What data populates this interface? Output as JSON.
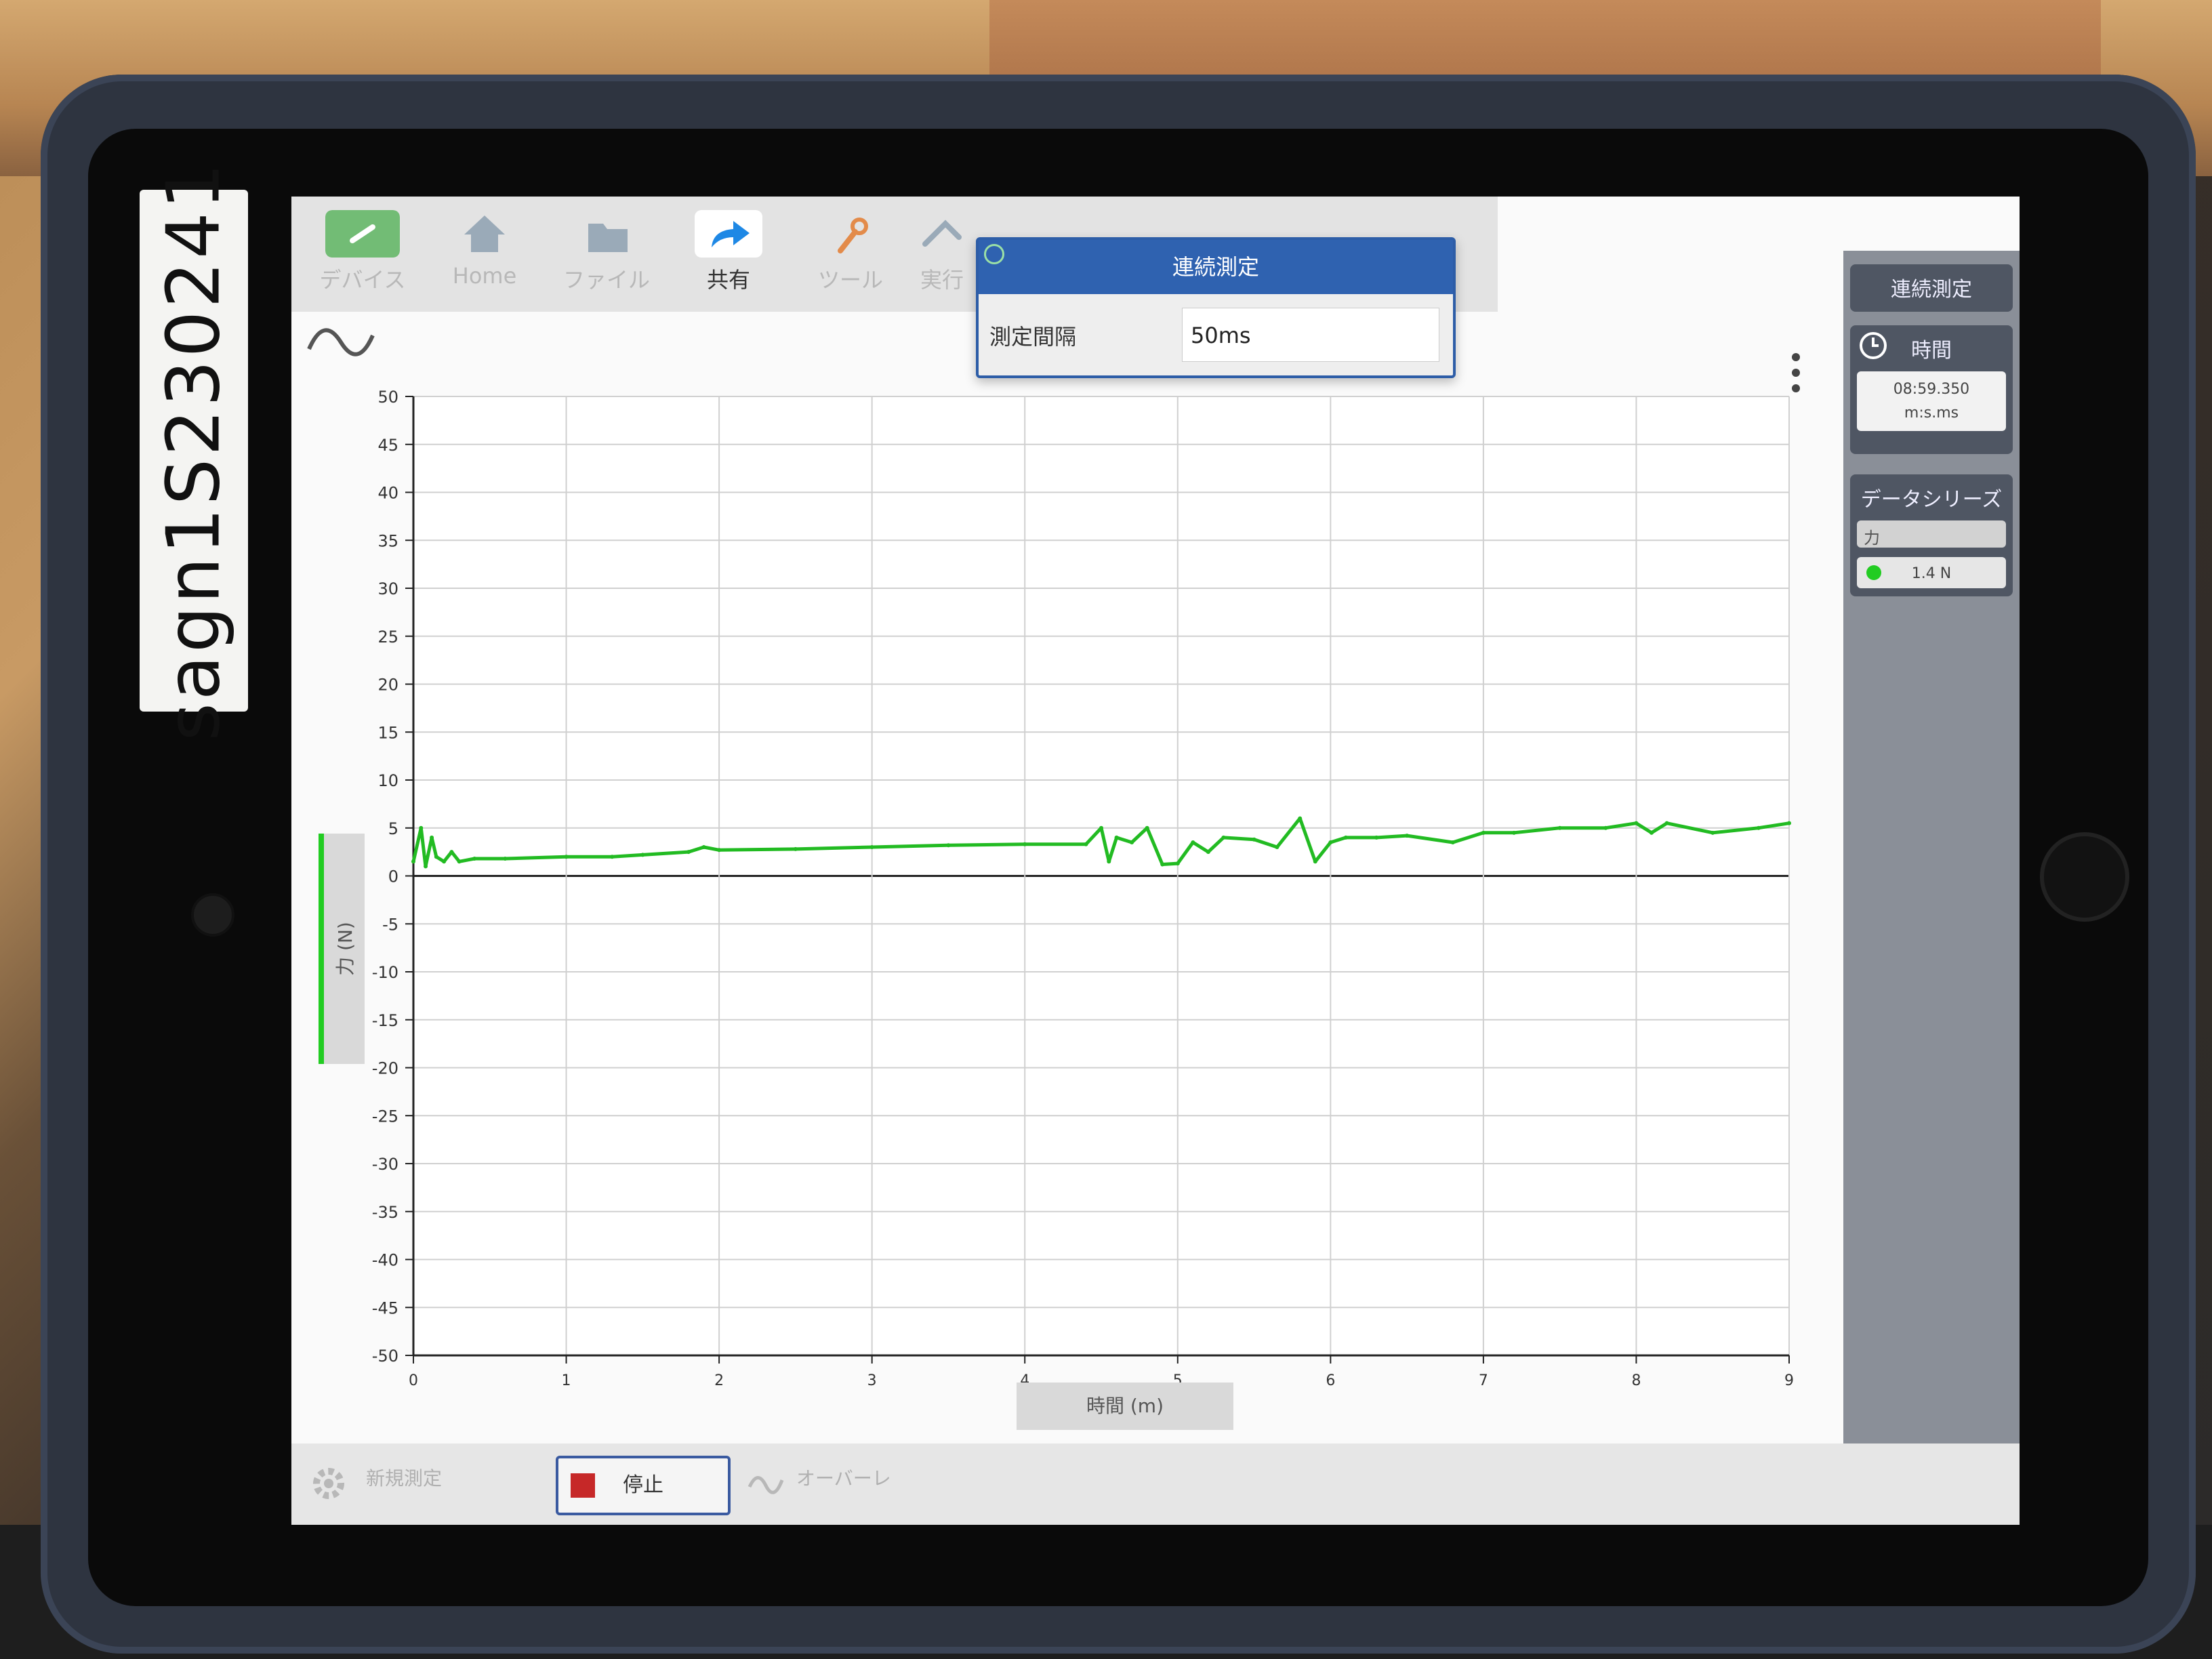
{
  "sticker": {
    "text": "sagn1S230241"
  },
  "toolbar": {
    "items": [
      {
        "label": "デバイス",
        "icon": "link-icon",
        "color": "#4caf50"
      },
      {
        "label": "Home",
        "icon": "home-icon",
        "color": "#9ab"
      },
      {
        "label": "ファイル",
        "icon": "folder-icon",
        "color": "#9ab"
      },
      {
        "label": "共有",
        "icon": "share-icon",
        "color": "#1e88e5"
      },
      {
        "label": "ツール",
        "icon": "wrench-icon",
        "color": "#e38b4a"
      },
      {
        "label": "実行",
        "icon": "run-icon",
        "color": "#9ab"
      }
    ]
  },
  "dialog": {
    "title": "連続測定",
    "interval_label": "測定間隔",
    "interval_value": "50ms"
  },
  "sidebar": {
    "mode_title": "連続測定",
    "time_title": "時間",
    "time_value": "08:59.350",
    "time_unit": "m:s.ms",
    "series_title": "データシリーズ",
    "series_name": "力",
    "series_value": "1.4 N",
    "series_color": "#22cc22"
  },
  "bottom": {
    "new_measure": "新規測定",
    "stop_label": "停止",
    "overlay": "オーバーレ"
  },
  "chart_data": {
    "type": "line",
    "xlabel": "時間 (m)",
    "ylabel": "力 (N)",
    "xlim": [
      0,
      9
    ],
    "ylim": [
      -50,
      50
    ],
    "x_ticks": [
      0,
      1,
      2,
      3,
      4,
      5,
      6,
      7,
      8,
      9
    ],
    "y_ticks": [
      50,
      45,
      40,
      35,
      30,
      25,
      20,
      15,
      10,
      5,
      0,
      -5,
      -10,
      -15,
      -20,
      -25,
      -30,
      -35,
      -40,
      -45,
      -50
    ],
    "grid": true,
    "series": [
      {
        "color": "#22bb22",
        "x": [
          0,
          0.05,
          0.08,
          0.12,
          0.15,
          0.2,
          0.25,
          0.3,
          0.4,
          0.6,
          1.0,
          1.3,
          1.5,
          1.8,
          1.9,
          2.0,
          2.5,
          3.0,
          3.5,
          4.0,
          4.4,
          4.5,
          4.55,
          4.6,
          4.7,
          4.8,
          4.9,
          5.0,
          5.1,
          5.2,
          5.3,
          5.5,
          5.65,
          5.8,
          5.9,
          6.0,
          6.1,
          6.3,
          6.5,
          6.8,
          7.0,
          7.2,
          7.5,
          7.8,
          8.0,
          8.1,
          8.2,
          8.5,
          8.8,
          9.0
        ],
        "y": [
          1.5,
          5,
          1,
          4,
          2,
          1.5,
          2.5,
          1.5,
          1.8,
          1.8,
          2,
          2,
          2.2,
          2.5,
          3,
          2.7,
          2.8,
          3,
          3.2,
          3.3,
          3.3,
          5,
          1.5,
          4,
          3.5,
          5,
          1.2,
          1.3,
          3.5,
          2.5,
          4,
          3.8,
          3,
          6,
          1.5,
          3.5,
          4,
          4,
          4.2,
          3.5,
          4.5,
          4.5,
          5,
          5,
          5.5,
          4.5,
          5.5,
          4.5,
          5,
          5.5
        ]
      }
    ]
  }
}
